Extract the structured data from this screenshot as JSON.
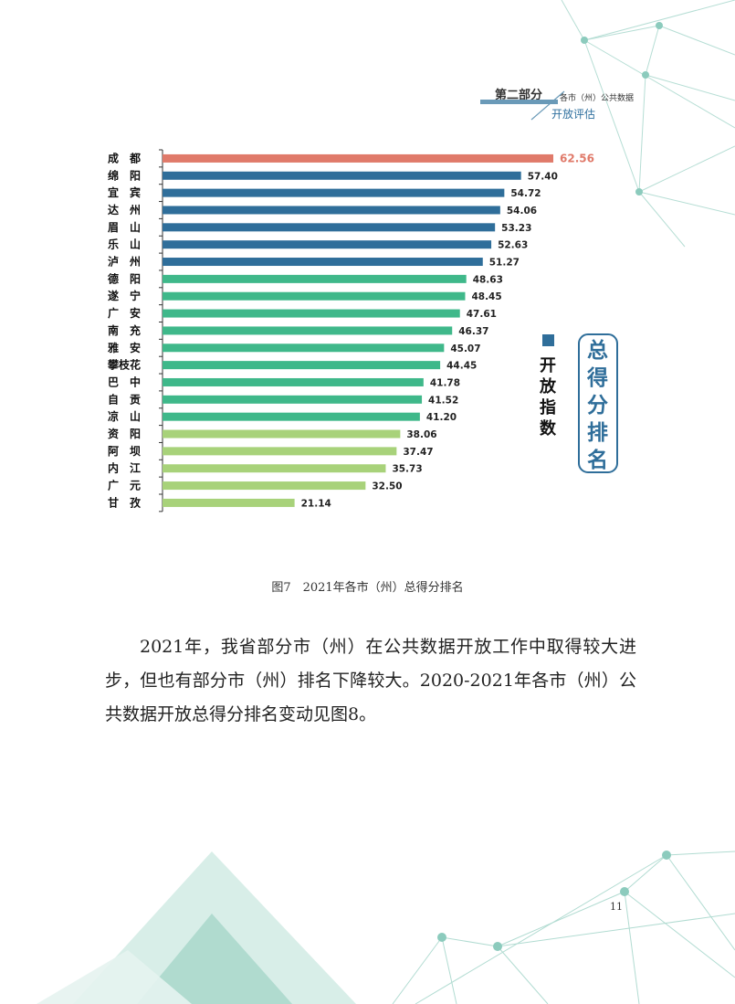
{
  "header": {
    "section": "第二部分",
    "subtitle": "各市（州）公共数据",
    "topic": "开放评估"
  },
  "chart_data": {
    "type": "bar",
    "orientation": "horizontal",
    "categories": [
      "成　都",
      "绵　阳",
      "宜　宾",
      "达　州",
      "眉　山",
      "乐　山",
      "泸　州",
      "德　阳",
      "遂　宁",
      "广　安",
      "南　充",
      "雅　安",
      "攀枝花",
      "巴　中",
      "自　贡",
      "凉　山",
      "资　阳",
      "阿　坝",
      "内　江",
      "广　元",
      "甘　孜"
    ],
    "values": [
      62.56,
      57.4,
      54.72,
      54.06,
      53.23,
      52.63,
      51.27,
      48.63,
      48.45,
      47.61,
      46.37,
      45.07,
      44.45,
      41.78,
      41.52,
      41.2,
      38.06,
      37.47,
      35.73,
      32.5,
      21.14
    ],
    "value_labels": [
      "62.56",
      "57.40",
      "54.72",
      "54.06",
      "53.23",
      "52.63",
      "51.27",
      "48.63",
      "48.45",
      "47.61",
      "46.37",
      "45.07",
      "44.45",
      "41.78",
      "41.52",
      "41.20",
      "38.06",
      "37.47",
      "35.73",
      "32.50",
      "21.14"
    ],
    "bar_colors": [
      "#e07a6a",
      "#2f6e9a",
      "#2f6e9a",
      "#2f6e9a",
      "#2f6e9a",
      "#2f6e9a",
      "#2f6e9a",
      "#3fb88a",
      "#3fb88a",
      "#3fb88a",
      "#3fb88a",
      "#3fb88a",
      "#3fb88a",
      "#3fb88a",
      "#3fb88a",
      "#3fb88a",
      "#a8d27a",
      "#a8d27a",
      "#a8d27a",
      "#a8d27a",
      "#a8d27a"
    ],
    "highlight_label_color": "#e07a6a",
    "xlim": [
      0,
      62.56
    ],
    "legend_label": "开放指数",
    "badge_title": "总得分排名"
  },
  "caption": "图7　2021年各市（州）总得分排名",
  "paragraph": "2021年，我省部分市（州）在公共数据开放工作中取得较大进步，但也有部分市（州）排名下降较大。2020-2021年各市（州）公共数据开放总得分排名变动见图8。",
  "page_number": "11",
  "colors": {
    "accent_blue": "#2f6e9a",
    "deco_teal": "#7fc3b4"
  }
}
